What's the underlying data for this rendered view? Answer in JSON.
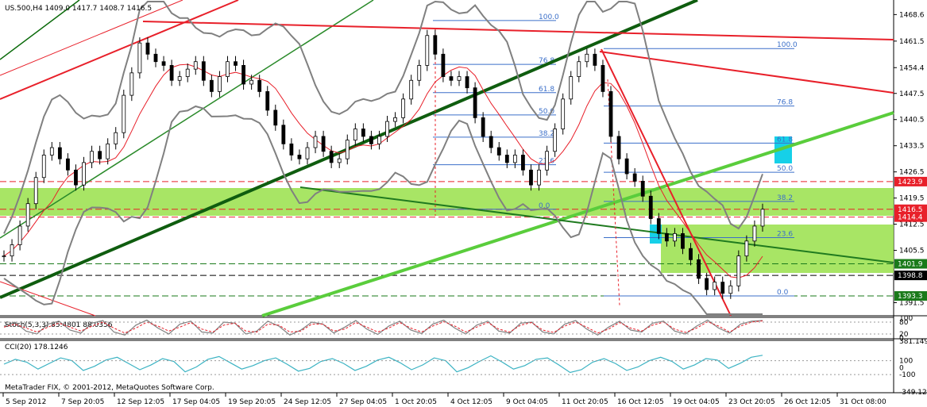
{
  "chart_data": {
    "type": "line",
    "title": "US.500,H4 1409.0 1417.7 1408.7 1416.5",
    "symbol": "US.500,H4",
    "ohlc": {
      "open": 1409.0,
      "high": 1417.7,
      "low": 1408.7,
      "close": 1416.5
    },
    "copyright": "MetaTrader FIX, © 2001-2012, MetaQuotes Software Corp.",
    "price_axis": {
      "ticks": [
        "1468.6",
        "1461.5",
        "1454.4",
        "1447.5",
        "1440.5",
        "1433.5",
        "1426.5",
        "1419.5",
        "1412.5",
        "1405.5",
        "1391.5"
      ],
      "range": [
        1388.0,
        1472.5
      ]
    },
    "price_tags": [
      {
        "label": "1423.9",
        "value": 1423.9,
        "color": "#e8202a"
      },
      {
        "label": "1416.5",
        "value": 1416.5,
        "color": "#e8202a"
      },
      {
        "label": "1414.4",
        "value": 1414.4,
        "color": "#e8202a"
      },
      {
        "label": "1401.9",
        "value": 1401.9,
        "color": "#1a7a1a"
      },
      {
        "label": "1398.8",
        "value": 1398.8,
        "color": "#000000"
      },
      {
        "label": "1393.3",
        "value": 1393.3,
        "color": "#1a7a1a"
      }
    ],
    "time_axis": [
      "5 Sep 2012",
      "7 Sep 20:05",
      "12 Sep 12:05",
      "17 Sep 04:05",
      "19 Sep 20:05",
      "24 Sep 12:05",
      "27 Sep 04:05",
      "1 Oct 20:05",
      "4 Oct 12:05",
      "9 Oct 04:05",
      "11 Oct 20:05",
      "16 Oct 12:05",
      "19 Oct 04:05",
      "23 Oct 20:05",
      "26 Oct 12:05",
      "31 Oct 08:00"
    ],
    "fib_left": [
      "100.0",
      "76.8",
      "61.8",
      "50.0",
      "38.2",
      "23.6",
      "0.0"
    ],
    "fib_right": [
      "100.0",
      "76.8",
      "61.8",
      "50.0",
      "38.2",
      "23.6",
      "0.0"
    ],
    "stoch": {
      "label": "Stoch(5,3,3) 85.4801 88.0356",
      "ticks": [
        "100",
        "80",
        "20",
        "0"
      ],
      "main": [
        60,
        80,
        35,
        20,
        70,
        85,
        40,
        25,
        75,
        88,
        30,
        15,
        65,
        90,
        50,
        20,
        70,
        85,
        30,
        25,
        80,
        75,
        20,
        35,
        85,
        60,
        15,
        40,
        80,
        70,
        25,
        55,
        88,
        45,
        18,
        60,
        85,
        40,
        22,
        70,
        90,
        50,
        20,
        65,
        85,
        35,
        25,
        75,
        80,
        30,
        20,
        70,
        88,
        45,
        15,
        55,
        85,
        40,
        30,
        75,
        85,
        35,
        20,
        60,
        90,
        50,
        25,
        70,
        85,
        88
      ],
      "signal": [
        55,
        70,
        50,
        30,
        55,
        75,
        55,
        35,
        60,
        80,
        50,
        25,
        50,
        80,
        60,
        35,
        55,
        78,
        45,
        30,
        65,
        75,
        35,
        30,
        70,
        65,
        30,
        35,
        70,
        70,
        35,
        45,
        78,
        55,
        30,
        50,
        78,
        50,
        30,
        60,
        82,
        60,
        30,
        55,
        78,
        45,
        30,
        65,
        78,
        40,
        28,
        60,
        80,
        55,
        25,
        45,
        78,
        50,
        35,
        65,
        80,
        45,
        28,
        50,
        82,
        60,
        30,
        60,
        80,
        86
      ]
    },
    "cci": {
      "label": "CCI(20) 178.1246",
      "ticks": [
        "381.149",
        "100",
        "0",
        "-100",
        "-349.128"
      ],
      "values": [
        50,
        120,
        80,
        -20,
        60,
        140,
        100,
        -40,
        20,
        110,
        150,
        60,
        -30,
        40,
        130,
        90,
        -60,
        10,
        120,
        160,
        70,
        -20,
        30,
        100,
        140,
        50,
        -50,
        -10,
        90,
        130,
        60,
        -40,
        20,
        110,
        150,
        70,
        -30,
        40,
        140,
        100,
        -60,
        0,
        90,
        170,
        80,
        -20,
        30,
        120,
        140,
        40,
        -70,
        -30,
        80,
        130,
        60,
        -40,
        10,
        100,
        150,
        90,
        -20,
        40,
        130,
        110,
        -10,
        60,
        150,
        178
      ]
    },
    "price_series": [
      1404,
      1407,
      1412,
      1418,
      1425,
      1431,
      1433,
      1430,
      1427,
      1423,
      1429,
      1432,
      1430,
      1434,
      1437,
      1447,
      1453,
      1461,
      1458,
      1456,
      1455,
      1451,
      1452,
      1454,
      1456,
      1451,
      1448,
      1452,
      1456,
      1455,
      1450,
      1451,
      1448,
      1443,
      1439,
      1434,
      1431,
      1430,
      1433,
      1436,
      1432,
      1429,
      1430,
      1435,
      1438,
      1436,
      1434,
      1436,
      1440,
      1441,
      1446,
      1451,
      1455,
      1463,
      1458,
      1452,
      1451,
      1452,
      1449,
      1441,
      1436,
      1433,
      1431,
      1429,
      1431,
      1427,
      1423,
      1427,
      1432,
      1438,
      1446,
      1452,
      1456,
      1458,
      1455,
      1448,
      1436,
      1430,
      1426,
      1424,
      1420,
      1414,
      1410,
      1408,
      1410,
      1406,
      1403,
      1398,
      1395,
      1397,
      1394,
      1396,
      1404,
      1408,
      1412,
      1416.5
    ]
  }
}
